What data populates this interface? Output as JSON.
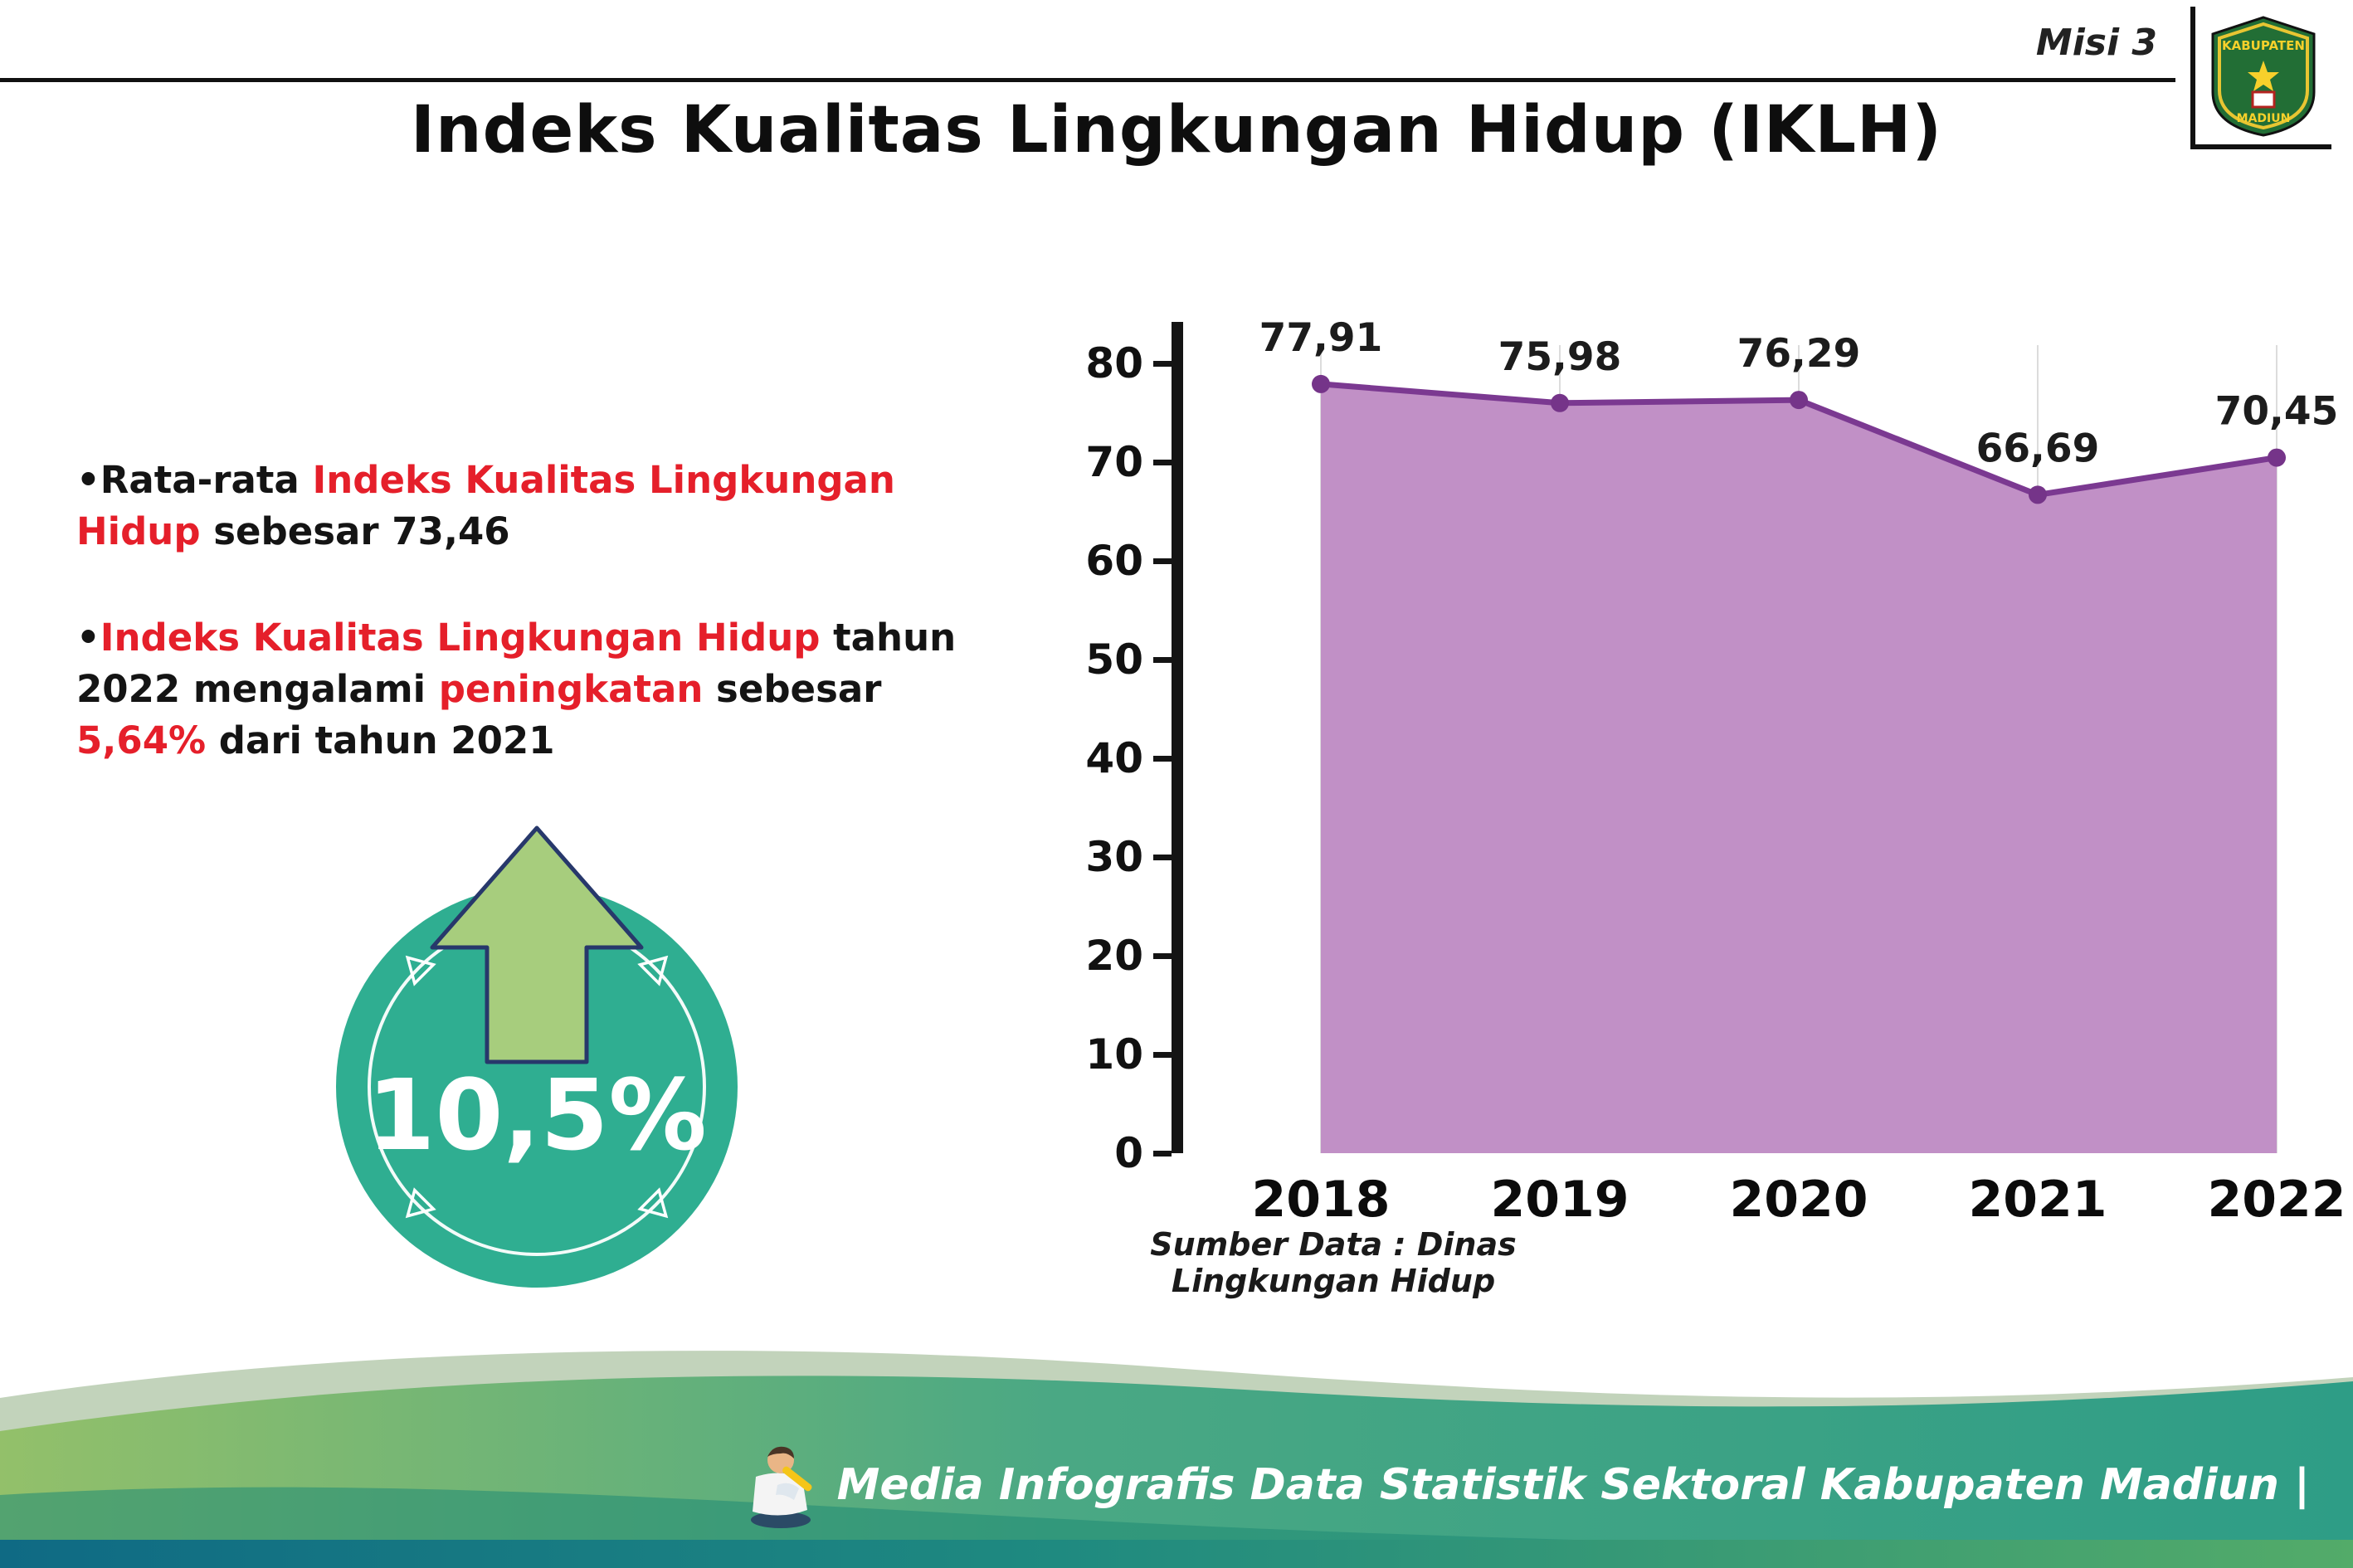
{
  "header": {
    "misi_label": "Misi 3",
    "title": "Indeks Kualitas Lingkungan Hidup (IKLH)",
    "logo": {
      "top_text": "KABUPATEN",
      "bottom_text": "MADIUN"
    }
  },
  "bullets": [
    {
      "marker": "•",
      "segments": [
        {
          "text": "Rata-rata "
        },
        {
          "text": "Indeks Kualitas Lingkungan Hidup"
        },
        {
          "text": " sebesar 73,46"
        }
      ]
    },
    {
      "marker": "•",
      "segments": [
        {
          "text": "Indeks Kualitas Lingkungan Hidup"
        },
        {
          "text": " tahun 2022 mengalami "
        },
        {
          "text": "peningkatan"
        },
        {
          "text": " sebesar "
        },
        {
          "text": "5,64%"
        },
        {
          "text": " dari tahun 2021"
        }
      ]
    }
  ],
  "highlight": {
    "value": "10,5%"
  },
  "chart_data": {
    "type": "area",
    "categories": [
      "2018",
      "2019",
      "2020",
      "2021",
      "2022"
    ],
    "values": [
      77.91,
      75.98,
      76.29,
      66.69,
      70.45
    ],
    "value_labels": [
      "77,91",
      "75,98",
      "76,29",
      "66,69",
      "70,45"
    ],
    "ylim": [
      0,
      80
    ],
    "yticks": [
      0,
      10,
      20,
      30,
      40,
      50,
      60,
      70,
      80
    ],
    "grid": "vertical-light",
    "legend": "none",
    "source": "Sumber Data : Dinas Lingkungan Hidup",
    "colors": {
      "fill": "#c190c6",
      "line": "#7b3991",
      "marker": "#753489"
    }
  },
  "footer": {
    "text": "Media Infografis Data Statistik Sektoral Kabupaten Madiun |"
  },
  "colors": {
    "red_accent": "#e51f2a",
    "teal_circle": "#2fae91",
    "arrow_green": "#a7cd7d",
    "footer_green": "#8cbd66",
    "footer_teal": "#2e9d86"
  }
}
